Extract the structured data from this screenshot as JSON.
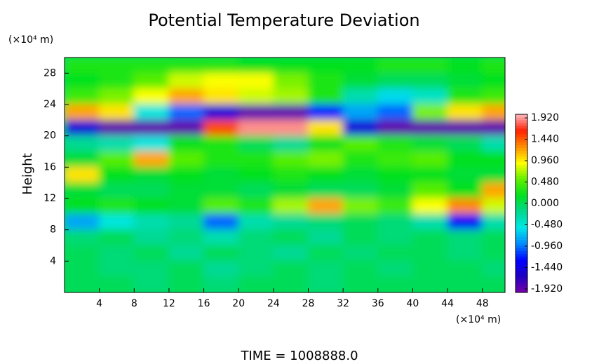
{
  "chart_data": {
    "type": "heatmap",
    "title": "Potential Temperature Deviation",
    "y_label": "Height",
    "y_unit": "(×10⁴ m)",
    "x_unit": "(×10⁴ m)",
    "footer": "TIME = 1008888.0",
    "xlim": [
      0,
      50.6
    ],
    "ylim": [
      0,
      30
    ],
    "xticks": [
      4,
      8,
      12,
      16,
      20,
      24,
      28,
      32,
      36,
      40,
      44,
      48
    ],
    "yticks": [
      4,
      8,
      12,
      16,
      20,
      24,
      28
    ],
    "clim": [
      -2,
      2
    ],
    "colormap": [
      "#7800a8",
      "#2000c0",
      "#0000ff",
      "#0088ff",
      "#00e8e8",
      "#00d890",
      "#00e020",
      "#60f000",
      "#ffff00",
      "#ff9000",
      "#ff2000",
      "#ffb8c0"
    ],
    "colorbar_ticks": [
      {
        "value": 1.92,
        "label": "1.920"
      },
      {
        "value": 1.44,
        "label": "1.440"
      },
      {
        "value": 0.96,
        "label": "0.960"
      },
      {
        "value": 0.48,
        "label": "0.480"
      },
      {
        "value": 0,
        "label": "0.000"
      },
      {
        "value": -0.48,
        "label": "-0.480"
      },
      {
        "value": -0.96,
        "label": "-0.960"
      },
      {
        "value": -1.44,
        "label": "-1.440"
      },
      {
        "value": -1.92,
        "label": "-1.920"
      }
    ],
    "x": [
      2,
      6,
      10,
      14,
      18,
      22,
      26,
      30,
      34,
      38,
      42,
      46,
      50
    ],
    "y": [
      29,
      27,
      25,
      23,
      21,
      19,
      17,
      15,
      13,
      11,
      9,
      7,
      5,
      3,
      1
    ],
    "z": [
      [
        0.3,
        0.3,
        0.3,
        0.3,
        0.3,
        0.2,
        0.2,
        0.2,
        0.2,
        0.3,
        0.3,
        0.2,
        0.3
      ],
      [
        0.2,
        0.3,
        0.5,
        0.8,
        0.9,
        0.9,
        0.6,
        0.3,
        0.1,
        0,
        0,
        0.1,
        0.2
      ],
      [
        0.4,
        0.6,
        0.9,
        1.2,
        1.0,
        0.8,
        0.7,
        0.3,
        -0.3,
        -0.6,
        -0.4,
        0.3,
        0.4
      ],
      [
        1.2,
        1.0,
        -0.5,
        -1.0,
        -1.5,
        -1.9,
        -1.9,
        -1.2,
        -0.8,
        -1.0,
        0.6,
        1.0,
        1.2
      ],
      [
        -1.5,
        -1.9,
        -1.9,
        -1.9,
        1.5,
        1.9,
        1.9,
        1.0,
        -1.5,
        -1.9,
        -1.9,
        -1.9,
        -1.9
      ],
      [
        -0.2,
        -0.3,
        -0.5,
        0.2,
        0.3,
        0,
        -0.2,
        0.2,
        0.5,
        0.3,
        0.1,
        0,
        -0.3
      ],
      [
        0.1,
        0.5,
        1.2,
        0.5,
        0.3,
        0.3,
        0.5,
        0.6,
        0.3,
        0.4,
        0.5,
        0.2,
        0.2
      ],
      [
        1.0,
        0.2,
        0.1,
        0.2,
        0.1,
        0.2,
        0.3,
        0.2,
        0.1,
        0.2,
        0.2,
        0.1,
        0.1
      ],
      [
        0.1,
        0,
        0,
        0.1,
        0.1,
        0,
        0.1,
        0,
        0,
        0.1,
        0.5,
        0.2,
        1.2
      ],
      [
        0.2,
        0.3,
        0.2,
        0.1,
        0.5,
        0.3,
        0.7,
        1.2,
        0.6,
        0.4,
        0.9,
        1.3,
        0.8
      ],
      [
        -0.8,
        -0.5,
        -0.3,
        -0.2,
        -1.0,
        -0.3,
        -0.2,
        -0.1,
        0,
        -0.1,
        -0.3,
        -1.3,
        -0.3
      ],
      [
        -0.1,
        0,
        -0.2,
        -0.1,
        -0.3,
        -0.1,
        0,
        -0.2,
        0,
        -0.1,
        0,
        -0.1,
        0
      ],
      [
        0,
        -0.1,
        0,
        -0.2,
        0,
        -0.1,
        -0.2,
        0,
        -0.1,
        0,
        0,
        -0.1,
        0
      ],
      [
        0,
        -0.1,
        -0.1,
        0,
        -0.2,
        -0.1,
        0,
        -0.1,
        0,
        -0.1,
        0,
        0,
        -0.1
      ],
      [
        0,
        0,
        -0.1,
        0,
        -0.1,
        0,
        0,
        -0.1,
        0,
        0,
        0,
        0,
        0
      ]
    ]
  }
}
